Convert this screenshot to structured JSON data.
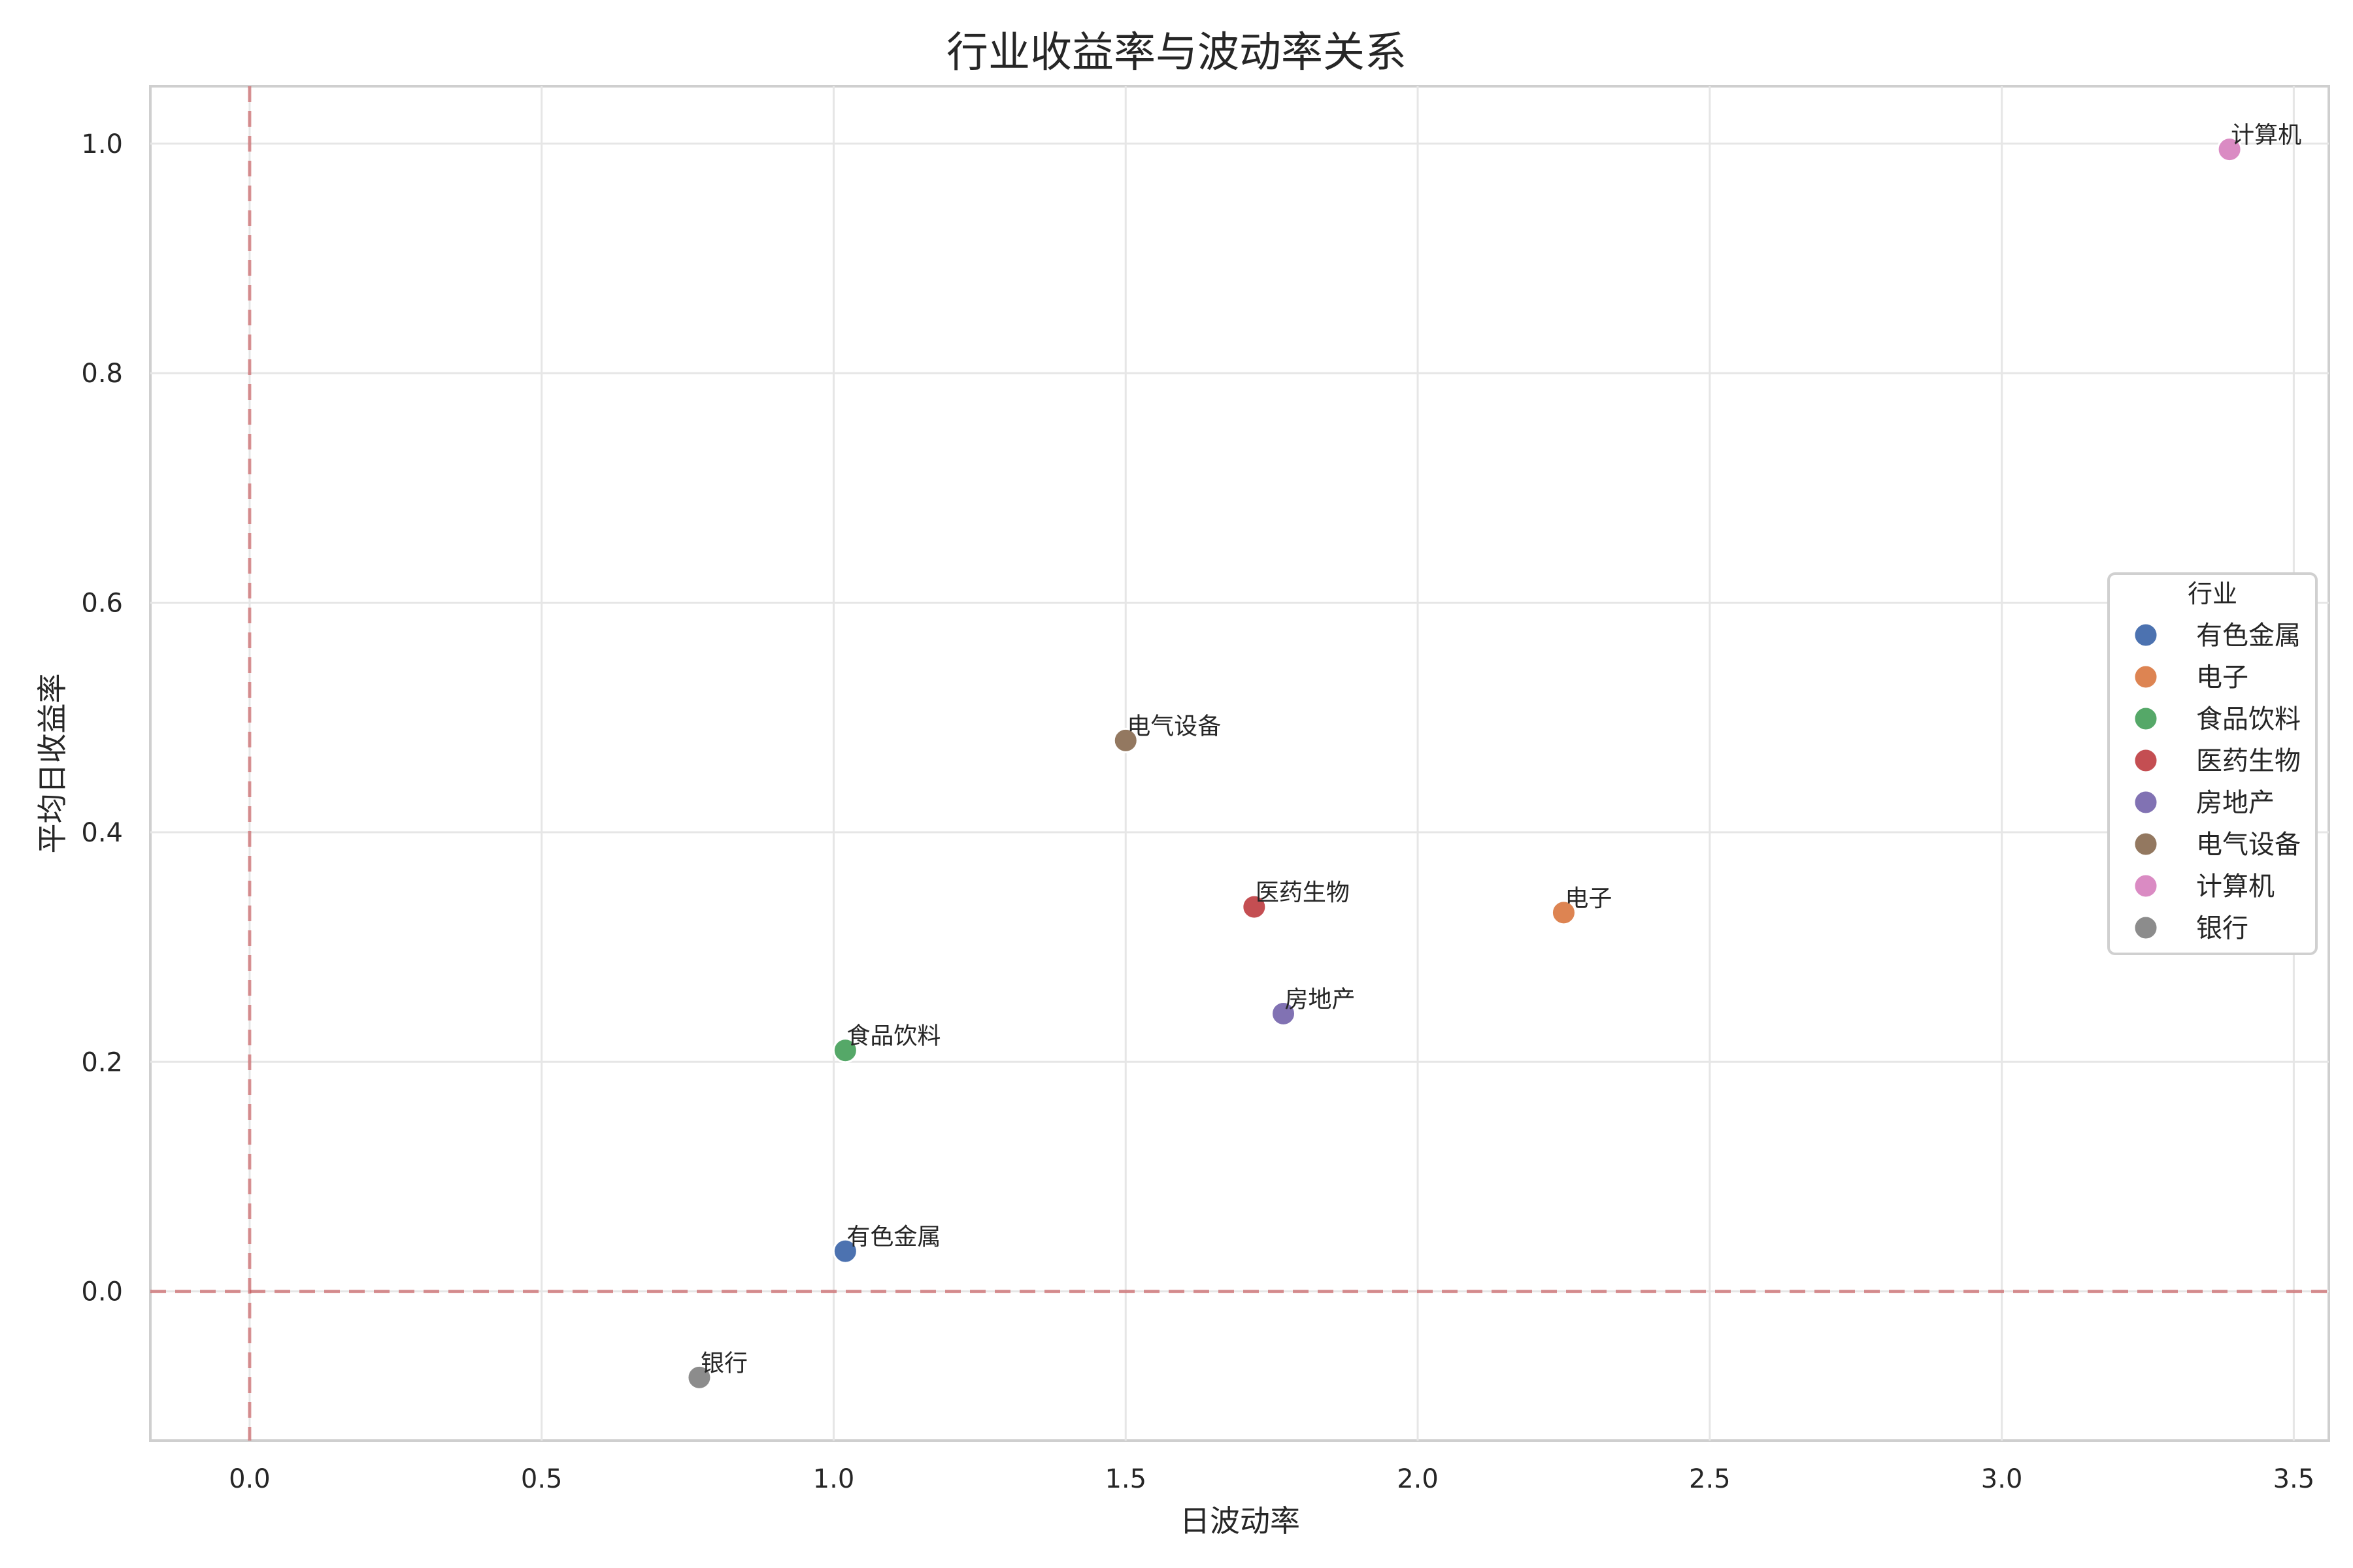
{
  "chart_data": {
    "type": "scatter",
    "title": "行业收益率与波动率关系",
    "xlabel": "日波动率",
    "ylabel": "平均日收益率",
    "xlim": [
      -0.17,
      3.56
    ],
    "ylim": [
      -0.13,
      1.05
    ],
    "x_ticks": [
      0.0,
      0.5,
      1.0,
      1.5,
      2.0,
      2.5,
      3.0,
      3.5
    ],
    "x_tick_labels": [
      "0.0",
      "0.5",
      "1.0",
      "1.5",
      "2.0",
      "2.5",
      "3.0",
      "3.5"
    ],
    "y_ticks": [
      0.0,
      0.2,
      0.4,
      0.6,
      0.8,
      1.0
    ],
    "y_tick_labels": [
      "0.0",
      "0.2",
      "0.4",
      "0.6",
      "0.8",
      "1.0"
    ],
    "grid": true,
    "reference_lines": {
      "x": 0.0,
      "y": 0.0,
      "style": "dashed",
      "color": "#c44e52"
    },
    "legend": {
      "title": "行业",
      "position": "right"
    },
    "series": [
      {
        "name": "有色金属",
        "x": 1.02,
        "y": 0.035,
        "color": "#4c72b0"
      },
      {
        "name": "电子",
        "x": 2.25,
        "y": 0.33,
        "color": "#dd8452"
      },
      {
        "name": "食品饮料",
        "x": 1.02,
        "y": 0.21,
        "color": "#55a868"
      },
      {
        "name": "医药生物",
        "x": 1.72,
        "y": 0.335,
        "color": "#c44e52"
      },
      {
        "name": "房地产",
        "x": 1.77,
        "y": 0.242,
        "color": "#8172b3"
      },
      {
        "name": "电气设备",
        "x": 1.5,
        "y": 0.48,
        "color": "#937860"
      },
      {
        "name": "计算机",
        "x": 3.39,
        "y": 0.995,
        "color": "#da8bc3"
      },
      {
        "name": "银行",
        "x": 0.77,
        "y": -0.075,
        "color": "#8c8c8c"
      }
    ]
  }
}
